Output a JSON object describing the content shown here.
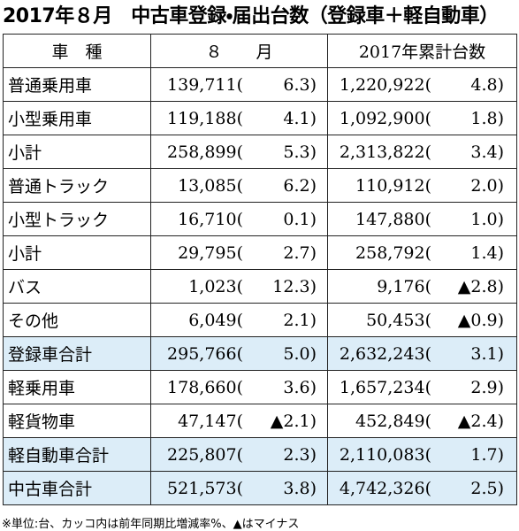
{
  "title": "2017年８月　中古車登録・届出台数（登録車＋軽自動車）",
  "table": {
    "header": [
      "車　種",
      "８　　月",
      "2017年累計台数"
    ],
    "rows": [
      [
        "普通乗用車",
        "139,711(",
        "6.3)",
        "1,220,922(",
        "4.8)"
      ],
      [
        "小型乗用車",
        "119,188(",
        "4.1)",
        "1,092,900(",
        "1.8)"
      ],
      [
        "小計",
        "258,899(",
        "5.3)",
        "2,313,822(",
        "3.4)"
      ],
      [
        "普通トラック",
        "13,085(",
        "6.2)",
        "110,912(",
        "2.0)"
      ],
      [
        "小型トラック",
        "16,710(",
        "0.1)",
        "147,880(",
        "1.0)"
      ],
      [
        "小計",
        "29,795(",
        "2.7)",
        "258,792(",
        "1.4)"
      ],
      [
        "バス",
        "1,023(",
        "12.3)",
        "9,176(",
        "▲2.8)"
      ],
      [
        "その他",
        "6,049(",
        "2.1)",
        "50,453(",
        "▲0.9)"
      ],
      [
        "登録車合計",
        "295,766(",
        "5.0)",
        "2,632,243(",
        "3.1)"
      ],
      [
        "軽乗用車",
        "178,660(",
        "3.6)",
        "1,657,234(",
        "2.9)"
      ],
      [
        "軽貨物車",
        "47,147(",
        "▲2.1)",
        "452,849(",
        "▲2.4)"
      ],
      [
        "軽自動車合計",
        "225,807(",
        "2.3)",
        "2,110,083(",
        "1.7)"
      ],
      [
        "中古車合計",
        "521,573(",
        "3.8)",
        "4,742,326(",
        "2.5)"
      ]
    ],
    "shaded_rows": [
      8,
      11,
      12
    ],
    "shade_color": "#dcedf8"
  },
  "footnote": "※単位:台、カッコ内は前年同期比増減率%、▲はマイナス"
}
